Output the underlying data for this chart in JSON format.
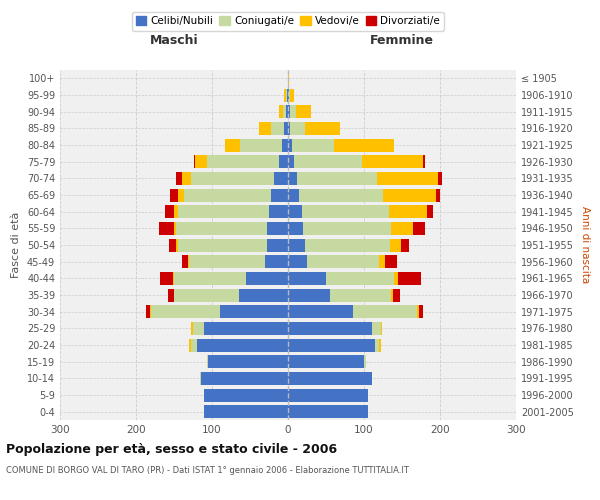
{
  "age_groups": [
    "0-4",
    "5-9",
    "10-14",
    "15-19",
    "20-24",
    "25-29",
    "30-34",
    "35-39",
    "40-44",
    "45-49",
    "50-54",
    "55-59",
    "60-64",
    "65-69",
    "70-74",
    "75-79",
    "80-84",
    "85-89",
    "90-94",
    "95-99",
    "100+"
  ],
  "birth_years": [
    "2001-2005",
    "1996-2000",
    "1991-1995",
    "1986-1990",
    "1981-1985",
    "1976-1980",
    "1971-1975",
    "1966-1970",
    "1961-1965",
    "1956-1960",
    "1951-1955",
    "1946-1950",
    "1941-1945",
    "1936-1940",
    "1931-1935",
    "1926-1930",
    "1921-1925",
    "1916-1920",
    "1911-1915",
    "1906-1910",
    "≤ 1905"
  ],
  "males": {
    "celibi": [
      110,
      110,
      115,
      105,
      120,
      110,
      90,
      65,
      55,
      30,
      27,
      27,
      25,
      22,
      18,
      12,
      8,
      5,
      2,
      1,
      0
    ],
    "coniugati": [
      0,
      0,
      1,
      2,
      8,
      15,
      90,
      85,
      95,
      100,
      118,
      120,
      120,
      115,
      110,
      95,
      55,
      18,
      5,
      2,
      0
    ],
    "vedovi": [
      0,
      0,
      0,
      0,
      2,
      2,
      2,
      0,
      1,
      1,
      2,
      3,
      5,
      8,
      12,
      15,
      20,
      15,
      5,
      2,
      0
    ],
    "divorziati": [
      0,
      0,
      0,
      0,
      0,
      0,
      5,
      8,
      18,
      8,
      10,
      20,
      12,
      10,
      8,
      2,
      0,
      0,
      0,
      0,
      0
    ]
  },
  "females": {
    "nubili": [
      105,
      105,
      110,
      100,
      115,
      110,
      85,
      55,
      50,
      25,
      22,
      20,
      18,
      15,
      12,
      8,
      5,
      3,
      2,
      1,
      0
    ],
    "coniugate": [
      0,
      0,
      1,
      2,
      5,
      12,
      85,
      80,
      90,
      95,
      112,
      115,
      115,
      110,
      105,
      90,
      55,
      20,
      8,
      2,
      0
    ],
    "vedove": [
      0,
      0,
      0,
      0,
      2,
      2,
      2,
      3,
      5,
      8,
      15,
      30,
      50,
      70,
      80,
      80,
      80,
      45,
      20,
      5,
      1
    ],
    "divorziate": [
      0,
      0,
      0,
      0,
      0,
      0,
      5,
      10,
      30,
      15,
      10,
      15,
      8,
      5,
      5,
      2,
      0,
      0,
      0,
      0,
      0
    ]
  },
  "colors": {
    "celibi": "#4472c4",
    "coniugati": "#c5d9a0",
    "vedovi": "#ffc000",
    "divorziati": "#cc0000"
  },
  "title": "Popolazione per età, sesso e stato civile - 2006",
  "subtitle": "COMUNE DI BORGO VAL DI TARO (PR) - Dati ISTAT 1° gennaio 2006 - Elaborazione TUTTITALIA.IT",
  "xlabel_left": "Maschi",
  "xlabel_right": "Femmine",
  "ylabel_left": "Fasce di età",
  "ylabel_right": "Anni di nascita",
  "xlim": 300,
  "bg_color": "#f0f0f0",
  "grid_color": "#cccccc"
}
